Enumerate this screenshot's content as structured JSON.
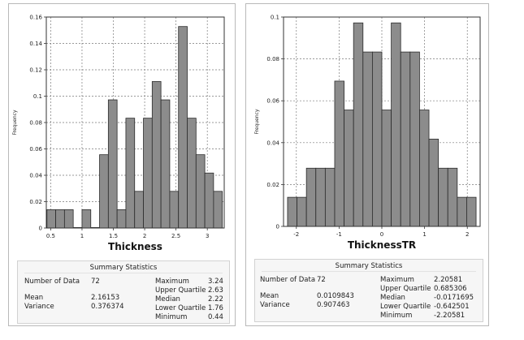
{
  "chart_data": [
    {
      "type": "bar",
      "xlabel": "Thickness",
      "ylabel": "Frequency",
      "xlim": [
        0.43,
        3.27
      ],
      "ylim": [
        0,
        0.16
      ],
      "xticks": [
        "0.5",
        "1",
        "1.5",
        "2",
        "2.5",
        "3"
      ],
      "xtick_values": [
        0.5,
        1,
        1.5,
        2,
        2.5,
        3
      ],
      "yticks": [
        "0",
        "0.02",
        "0.04",
        "0.06",
        "0.08",
        "0.1",
        "0.12",
        "0.14",
        "0.16"
      ],
      "ytick_values": [
        0,
        0.02,
        0.04,
        0.06,
        0.08,
        0.1,
        0.12,
        0.14,
        0.16
      ],
      "bin_start": 0.44,
      "bin_width": 0.14,
      "values": [
        0.0139,
        0.0139,
        0.0139,
        0,
        0.0139,
        0,
        0.0556,
        0.0972,
        0.0139,
        0.0833,
        0.0278,
        0.0833,
        0.1111,
        0.0972,
        0.0278,
        0.1528,
        0.0833,
        0.0556,
        0.0417,
        0.0278
      ],
      "grid": true,
      "stats": {
        "title": "Summary Statistics",
        "number_label": "Number of Data",
        "number_value": "72",
        "mean_label": "Mean",
        "mean_value": "2.16153",
        "variance_label": "Variance",
        "variance_value": "0.376374",
        "maximum_label": "Maximum",
        "maximum_value": "3.24",
        "upper_quartile_label": "Upper Quartile",
        "upper_quartile_value": "2.63",
        "median_label": "Median",
        "median_value": "2.22",
        "lower_quartile_label": "Lower Quartile",
        "lower_quartile_value": "1.76",
        "minimum_label": "Minimum",
        "minimum_value": "0.44"
      }
    },
    {
      "type": "bar",
      "xlabel": "ThicknessTR",
      "ylabel": "Frequency",
      "xlim": [
        -2.3,
        2.3
      ],
      "ylim": [
        0,
        0.1
      ],
      "xticks": [
        "-2",
        "-1",
        "0",
        "1",
        "2"
      ],
      "xtick_values": [
        -2,
        -1,
        0,
        1,
        2
      ],
      "yticks": [
        "0",
        "0.02",
        "0.04",
        "0.06",
        "0.08",
        "0.1"
      ],
      "ytick_values": [
        0,
        0.02,
        0.04,
        0.06,
        0.08,
        0.1
      ],
      "bin_start": -2.2058,
      "bin_width": 0.22058,
      "values": [
        0.0139,
        0.0139,
        0.0278,
        0.0278,
        0.0278,
        0.0694,
        0.0556,
        0.0972,
        0.0833,
        0.0833,
        0.0556,
        0.0972,
        0.0833,
        0.0833,
        0.0556,
        0.0417,
        0.0278,
        0.0278,
        0.0139,
        0.0139
      ],
      "grid": true,
      "stats": {
        "title": "Summary Statistics",
        "number_label": "Number of Data",
        "number_value": "72",
        "mean_label": "Mean",
        "mean_value": "0.0109843",
        "variance_label": "Variance",
        "variance_value": "0.907463",
        "maximum_label": "Maximum",
        "maximum_value": "2.20581",
        "upper_quartile_label": "Upper Quartile",
        "upper_quartile_value": "0.685306",
        "median_label": "Median",
        "median_value": "-0.0171695",
        "lower_quartile_label": "Lower Quartile",
        "lower_quartile_value": "-0.642501",
        "minimum_label": "Minimum",
        "minimum_value": "-2.20581"
      }
    }
  ],
  "colors": {
    "bar_fill": "#8c8c8c",
    "bar_stroke": "#2b2b2b",
    "grid": "#7a7a7a",
    "axis": "#333333"
  }
}
